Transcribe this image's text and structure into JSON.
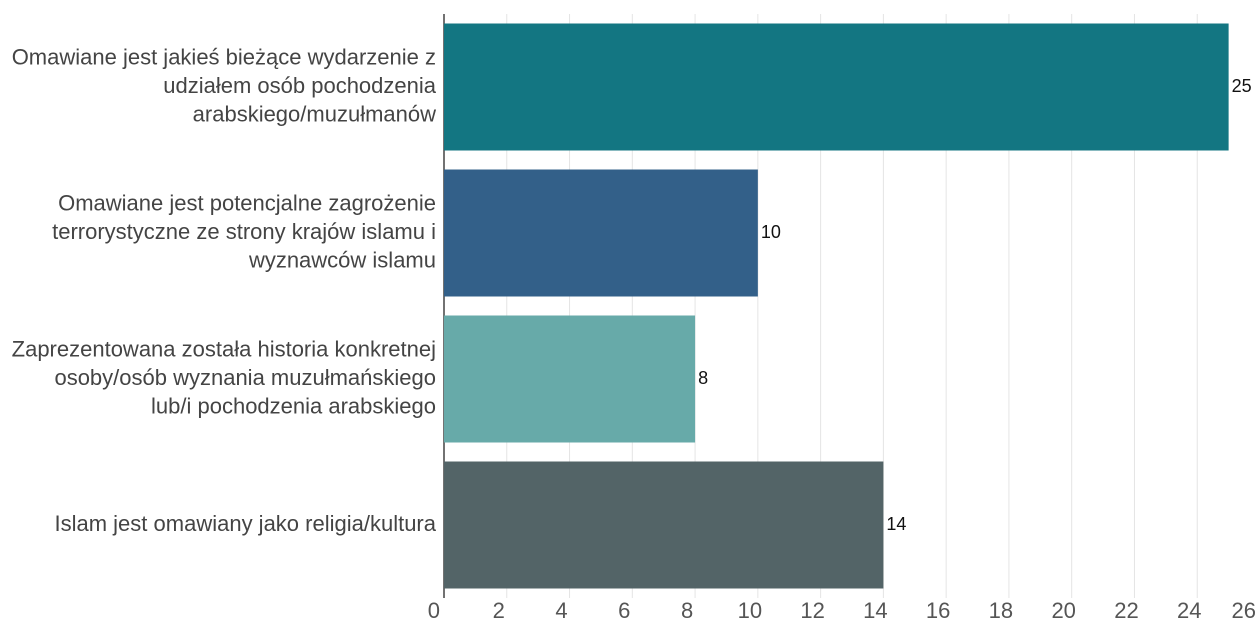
{
  "chart_data": {
    "type": "hbar",
    "categories": [
      "Omawiane jest jakieś bieżące wydarzenie z udziałem osób pochodzenia arabskiego/muzułmanów",
      "Omawiane jest potencjalne zagrożenie terrorystyczne ze strony krajów islamu i wyznawców islamu",
      "Zaprezentowana została historia konkretnej osoby/osób wyznania muzułmańskiego lub/i pochodzenia arabskiego",
      "Islam jest omawiany jako religia/kultura"
    ],
    "values": [
      25,
      10,
      8,
      14
    ],
    "colors": [
      "#137682",
      "#336089",
      "#67aaa9",
      "#536467"
    ],
    "xlim": [
      0,
      26
    ],
    "xticks": [
      0,
      2,
      4,
      6,
      8,
      10,
      12,
      14,
      16,
      18,
      20,
      22,
      24,
      26
    ],
    "grid": true
  }
}
